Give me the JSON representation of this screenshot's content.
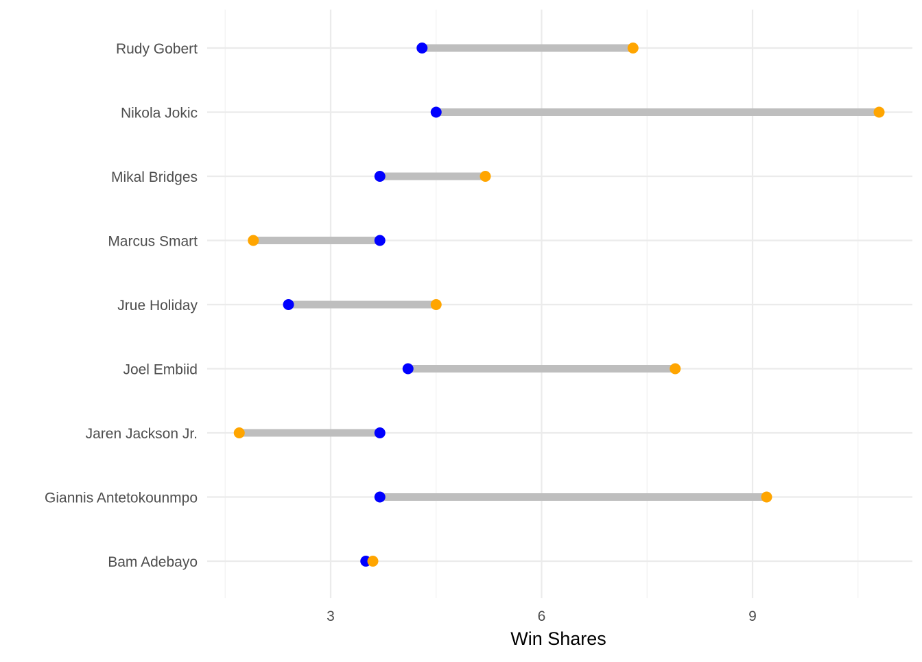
{
  "chart_data": {
    "type": "dumbbell",
    "xlabel": "Win Shares",
    "ylabel": "",
    "xlim": [
      1.5,
      10.75
    ],
    "x_ticks": [
      3,
      6,
      9
    ],
    "x_tick_labels": [
      "3",
      "6",
      "9"
    ],
    "x_minor_ticks": [
      1.5,
      4.5,
      7.5,
      10.5
    ],
    "grid": true,
    "legend": "none",
    "categories": [
      "Rudy Gobert",
      "Nikola Jokic",
      "Mikal Bridges",
      "Marcus Smart",
      "Jrue Holiday",
      "Joel Embiid",
      "Jaren Jackson Jr.",
      "Giannis Antetokounmpo",
      "Bam Adebayo"
    ],
    "series": [
      {
        "color": "#0000ff",
        "values": [
          4.3,
          4.5,
          3.7,
          3.7,
          2.4,
          4.1,
          3.7,
          3.7,
          3.5
        ]
      },
      {
        "color": "#ffa500",
        "values": [
          7.3,
          10.8,
          5.2,
          1.9,
          4.5,
          7.9,
          1.7,
          9.2,
          3.6
        ]
      }
    ],
    "segment_color": "#bebebe"
  }
}
